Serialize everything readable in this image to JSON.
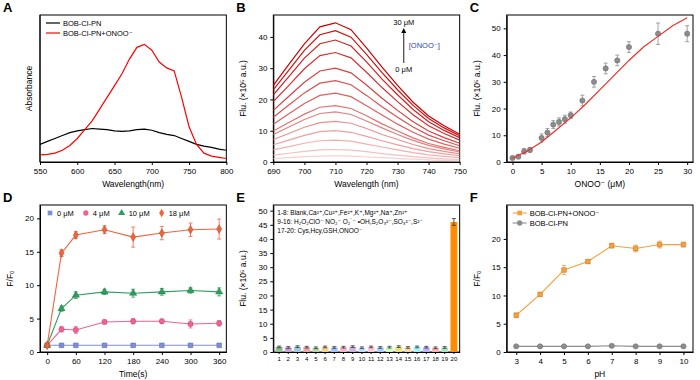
{
  "chart_data": [
    {
      "title": "A",
      "type": "line",
      "x_label": "Wavelength(nm)",
      "y_label": "Absorbance",
      "x": [
        550,
        560,
        570,
        580,
        590,
        600,
        610,
        620,
        630,
        640,
        650,
        660,
        670,
        680,
        690,
        700,
        710,
        720,
        730,
        740,
        750,
        760,
        770,
        780,
        790,
        800
      ],
      "xlim": [
        550,
        800
      ],
      "xticks": [
        550,
        600,
        650,
        700,
        750,
        800
      ],
      "ylim": [
        0,
        0.25
      ],
      "tick_labels": "x",
      "legend": "upper left",
      "series": [
        {
          "name": "BOB-Cl-PN",
          "color": "#000000",
          "values": [
            0.03,
            0.035,
            0.04,
            0.045,
            0.05,
            0.053,
            0.055,
            0.057,
            0.056,
            0.055,
            0.053,
            0.052,
            0.053,
            0.055,
            0.056,
            0.054,
            0.05,
            0.047,
            0.045,
            0.04,
            0.035,
            0.03,
            0.027,
            0.025,
            0.022,
            0.02
          ]
        },
        {
          "name": "BOB-Cl-PN+ONOO⁻",
          "color": "#ff0000",
          "values": [
            0.012,
            0.013,
            0.015,
            0.02,
            0.028,
            0.04,
            0.055,
            0.07,
            0.09,
            0.11,
            0.13,
            0.15,
            0.175,
            0.195,
            0.2,
            0.19,
            0.17,
            0.16,
            0.155,
            0.11,
            0.06,
            0.03,
            0.015,
            0.01,
            0.008,
            0.006
          ]
        }
      ]
    },
    {
      "title": "B",
      "type": "line",
      "x_label": "Wavelength (nm)",
      "y_label": "Flu. (×10⁵ a.u.)",
      "x": [
        690,
        695,
        700,
        705,
        710,
        715,
        720,
        725,
        730,
        735,
        740,
        745,
        750
      ],
      "xlim": [
        690,
        750
      ],
      "xticks": [
        690,
        700,
        710,
        720,
        730,
        740,
        750
      ],
      "ylim": [
        0,
        47
      ],
      "yticks": [
        0,
        10,
        20,
        30,
        40
      ],
      "annotations": [
        "30 μM",
        "0 μM",
        "[ONOO⁻]"
      ],
      "series": [
        {
          "color": "#f9d0d0",
          "values": [
            1.1,
            1.4,
            1.7,
            1.9,
            2,
            1.9,
            1.6,
            1.4,
            1.1,
            0.9,
            0.7,
            0.5,
            0.4
          ]
        },
        {
          "color": "#f5c0c0",
          "values": [
            2.2,
            2.8,
            3.4,
            3.9,
            4,
            3.8,
            3.3,
            2.7,
            2.2,
            1.7,
            1.3,
            1,
            0.8
          ]
        },
        {
          "color": "#f2b0b0",
          "values": [
            3.9,
            4.9,
            6,
            6.8,
            7,
            6.7,
            5.7,
            4.8,
            3.9,
            3,
            2.3,
            1.8,
            1.4
          ]
        },
        {
          "color": "#eea0a0",
          "values": [
            5.5,
            7,
            8.5,
            9.7,
            10,
            9.5,
            8.2,
            6.8,
            5.5,
            4.3,
            3.3,
            2.6,
            2
          ]
        },
        {
          "color": "#eb9090",
          "values": [
            7.2,
            9.1,
            11.1,
            12.6,
            13,
            12.4,
            10.7,
            8.8,
            7.2,
            5.6,
            4.3,
            3.4,
            2.6
          ]
        },
        {
          "color": "#e78080",
          "values": [
            8.8,
            11.2,
            13.6,
            15.5,
            16,
            15.2,
            13.1,
            10.9,
            8.8,
            6.9,
            5.3,
            4.2,
            3.2
          ]
        },
        {
          "color": "#e47070",
          "values": [
            9.9,
            12.6,
            15.3,
            17.5,
            18,
            17.1,
            14.8,
            12.2,
            9.9,
            7.7,
            5.9,
            4.7,
            3.6
          ]
        },
        {
          "color": "#e06060",
          "values": [
            12.1,
            15.4,
            18.7,
            21.3,
            22,
            20.9,
            18,
            15,
            12.1,
            9.5,
            7.3,
            5.7,
            4.4
          ]
        },
        {
          "color": "#dd5050",
          "values": [
            14.3,
            18.2,
            22.1,
            25.2,
            26,
            24.7,
            21.3,
            17.7,
            14.3,
            11.2,
            8.6,
            6.8,
            5.2
          ]
        },
        {
          "color": "#d94040",
          "values": [
            16.5,
            21,
            25.5,
            29.1,
            30,
            28.5,
            24.6,
            20.4,
            16.5,
            12.9,
            9.9,
            7.8,
            6
          ]
        },
        {
          "color": "#d63030",
          "values": [
            19.3,
            24.5,
            29.8,
            34,
            35,
            33.3,
            28.7,
            23.8,
            19.3,
            15.1,
            11.6,
            9.1,
            7
          ]
        },
        {
          "color": "#d22020",
          "values": [
            21.5,
            27.3,
            33.2,
            37.8,
            39,
            37.1,
            32,
            26.5,
            21.5,
            16.8,
            12.9,
            10.1,
            7.8
          ]
        },
        {
          "color": "#cf1010",
          "values": [
            23.1,
            29.4,
            35.7,
            40.7,
            42,
            39.9,
            34.4,
            28.6,
            23.1,
            18.1,
            13.9,
            10.9,
            8.4
          ]
        },
        {
          "color": "#cc0000",
          "values": [
            24.5,
            31.2,
            37.8,
            43.2,
            44.5,
            42.3,
            36.5,
            30.3,
            24.5,
            19.1,
            14.7,
            11.6,
            8.9
          ]
        }
      ]
    },
    {
      "title": "C",
      "type": "scatter",
      "x_label": "ONOO⁻ (μM)",
      "y_label": "Flu. (×10⁵ a.u.)",
      "xlim": [
        -1,
        31
      ],
      "xticks": [
        0,
        5,
        10,
        15,
        20,
        25,
        30
      ],
      "ylim": [
        0,
        55
      ],
      "yticks": [
        0,
        10,
        20,
        30,
        40,
        50
      ],
      "series": [
        {
          "type": "scatter",
          "color": "#8c8c8c",
          "marker": "circle",
          "x": [
            0,
            1,
            2,
            3,
            5,
            6,
            7,
            8,
            9,
            10,
            12,
            14,
            16,
            18,
            20,
            25,
            30
          ],
          "values": [
            1.5,
            2,
            4,
            4.5,
            9,
            11,
            14,
            15,
            16,
            17.5,
            23,
            30,
            35,
            38,
            43,
            48,
            48
          ],
          "errors": [
            0.5,
            0.5,
            1,
            0.8,
            1.5,
            1.5,
            1.5,
            1.5,
            1.5,
            1.2,
            2,
            2,
            2,
            2,
            2,
            4,
            3
          ]
        },
        {
          "type": "line",
          "color": "#e8302a",
          "x": [
            0,
            2.5,
            5,
            7.5,
            10,
            12.5,
            15,
            17.5,
            20,
            22.5,
            25,
            27.5,
            30
          ],
          "values": [
            1.5,
            4,
            7.5,
            12,
            16.5,
            21.5,
            27,
            32.5,
            38,
            43,
            47,
            51,
            54
          ]
        }
      ]
    },
    {
      "title": "D",
      "type": "line",
      "x_label": "Time(s)",
      "y_label": "F/F₀",
      "x": [
        0,
        30,
        60,
        120,
        180,
        240,
        300,
        360
      ],
      "xlim": [
        -15,
        375
      ],
      "xticks": [
        0,
        60,
        120,
        180,
        240,
        300,
        360
      ],
      "ylim": [
        0,
        22
      ],
      "yticks": [
        0,
        5,
        10,
        15,
        20
      ],
      "legend": "upper left",
      "series": [
        {
          "name": "0 μM",
          "color": "#7b8fd6",
          "marker": "square",
          "values": [
            1,
            1,
            1,
            1,
            1,
            1,
            1,
            1
          ],
          "errors": [
            0.1,
            0.1,
            0.1,
            0.1,
            0.1,
            0.1,
            0.1,
            0.1
          ]
        },
        {
          "name": "4 μM",
          "color": "#f06292",
          "marker": "circle",
          "values": [
            1,
            3.4,
            3.3,
            4.5,
            4.6,
            4.6,
            4.2,
            4.3
          ],
          "errors": [
            0.1,
            0.4,
            0.5,
            0.3,
            0.4,
            0.3,
            0.6,
            0.4
          ]
        },
        {
          "name": "10 μM",
          "color": "#2e9e5b",
          "marker": "triangle",
          "values": [
            1,
            6.5,
            8.5,
            9,
            8.8,
            9,
            9.2,
            9
          ],
          "errors": [
            0.1,
            0.4,
            0.5,
            0.4,
            0.6,
            0.5,
            0.4,
            0.6
          ]
        },
        {
          "name": "18 μM",
          "color": "#f0643c",
          "marker": "diamond",
          "values": [
            1,
            14.8,
            17.5,
            18.3,
            17.2,
            17.8,
            18.3,
            18.4
          ],
          "errors": [
            0.1,
            0.5,
            0.5,
            0.6,
            1.5,
            1,
            1,
            1.5
          ]
        }
      ]
    },
    {
      "title": "E",
      "type": "bar",
      "y_label": "Flu. (×10⁵ a.u.)",
      "categories": [
        "1",
        "2",
        "3",
        "4",
        "5",
        "6",
        "7",
        "8",
        "9",
        "10",
        "11",
        "12",
        "13",
        "14",
        "15",
        "16",
        "17",
        "18",
        "19",
        "20"
      ],
      "values": [
        1.8,
        1.6,
        1.9,
        1.7,
        1.5,
        1.8,
        1.6,
        1.7,
        1.9,
        1.5,
        1.8,
        1.6,
        1.7,
        1.9,
        1.6,
        1.8,
        1.7,
        1.5,
        1.6,
        46
      ],
      "errors": [
        0.3,
        0.3,
        0.3,
        0.3,
        0.3,
        0.3,
        0.3,
        0.3,
        0.3,
        0.3,
        0.3,
        0.3,
        0.3,
        0.3,
        0.3,
        0.3,
        0.3,
        0.3,
        0.3,
        1.2
      ],
      "colors": [
        "#8fbc8f",
        "#c9a0dc",
        "#9ec9e2",
        "#f4a6a6",
        "#b5d99c",
        "#f7d08a",
        "#a0c4ff",
        "#ffb3c6",
        "#cdb4db",
        "#bde0fe",
        "#ffc8dd",
        "#a2d2ff",
        "#caffbf",
        "#e8e27a",
        "#ffd6a5",
        "#9bf6ff",
        "#bdb2ff",
        "#ffadad",
        "#a8e6c1",
        "#ff8c00"
      ],
      "ylim": [
        0,
        52
      ],
      "yticks": [
        0,
        5,
        10,
        15,
        20,
        25,
        30,
        35,
        40,
        45,
        50
      ],
      "annotations": [
        "1-8: Blank,Ca²⁺,Cu²⁺,Fe²⁺,K⁺,Mg²⁺,Na⁺,Zn²⁺",
        "9-16: H₂O₂ClO⁻ NO₂⁻ O₂˙⁻ •OH,S₂O₃²⁻,SO₃²⁻,S²⁻",
        "17-20: Cys,Hcy,GSH,ONOO⁻"
      ]
    },
    {
      "title": "F",
      "type": "line",
      "x_label": "pH",
      "y_label": "F/F₀",
      "x": [
        3,
        4,
        5,
        6,
        7,
        8,
        9,
        10
      ],
      "xlim": [
        2.6,
        10.4
      ],
      "xticks": [
        3,
        4,
        5,
        6,
        7,
        8,
        9,
        10
      ],
      "ylim": [
        0,
        26
      ],
      "yticks": [
        0,
        5,
        10,
        15,
        20
      ],
      "legend": "upper left",
      "series": [
        {
          "name": "BOB-Cl-PN+ONOO⁻",
          "color": "#f5a03c",
          "marker": "square",
          "values": [
            6.5,
            10.2,
            14.5,
            16,
            18.8,
            18.3,
            19,
            19
          ],
          "errors": [
            0.4,
            0.3,
            0.8,
            0.3,
            0.4,
            0.6,
            0.6,
            0.4
          ]
        },
        {
          "name": "BOB-Cl-PN",
          "color": "#8c8c8c",
          "marker": "circle",
          "values": [
            1,
            1,
            1,
            1,
            1.1,
            1,
            1,
            1
          ]
        }
      ]
    }
  ]
}
